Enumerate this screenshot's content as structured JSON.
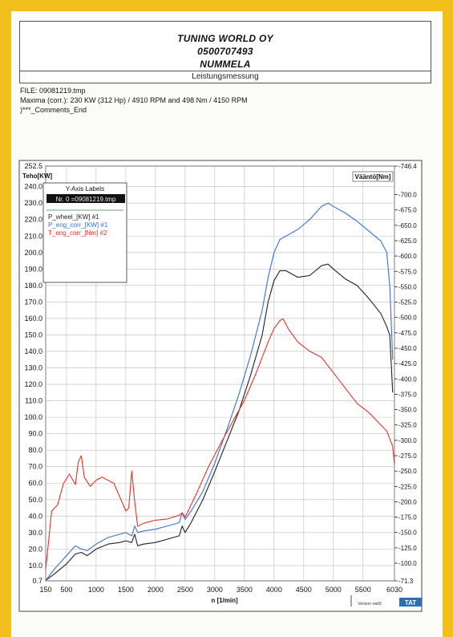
{
  "header": {
    "company": "TUNING WORLD OY",
    "phone": "0500707493",
    "city": "NUMMELA",
    "subtitle": "Leistungsmessung"
  },
  "info": {
    "file": "FILE: 09081219.tmp",
    "maxima": "Maxima (corr.):  230 KW (312 Hp) /  4910 RPM   and   498 Nm /  4150 RPM",
    "comments": ")***_Comments_End"
  },
  "legend": {
    "title": "Y-Axis Labels",
    "file_entry": "Nr. 0 =09081219.tmp",
    "entries": [
      "P_wheel_[KW] #1",
      "P_eng_corr_[KW] #1",
      "T_eng_corr_[Nm] #2"
    ]
  },
  "footer": {
    "version": "Version sw06",
    "brand": "TAT"
  },
  "colors": {
    "wheel": "#222222",
    "engine_power": "#3a6fd0",
    "torque": "#e0352b"
  },
  "chart_data": {
    "type": "line",
    "xlabel": "n  [1/min]",
    "ylabel_left": "Teho[KW]",
    "ylabel_right": "Vääntö[Nm]",
    "xlim": [
      150,
      6030
    ],
    "ylim_left": [
      0.7,
      252.5
    ],
    "ylim_right": [
      71.3,
      746.4
    ],
    "x_ticks": [
      "150",
      "500",
      "1000",
      "1500",
      "2000",
      "2500",
      "3000",
      "3500",
      "4000",
      "4500",
      "5000",
      "5500",
      "6030"
    ],
    "y_ticks_left": [
      "0.7",
      "10.0",
      "20.0",
      "30.0",
      "40.0",
      "50.0",
      "60.0",
      "70.0",
      "80.0",
      "90.0",
      "100.0",
      "110.0",
      "120.0",
      "130.0",
      "140.0",
      "150.0",
      "160.0",
      "170.0",
      "180.0",
      "190.0",
      "200.0",
      "210.0",
      "220.0",
      "230.0",
      "240.0",
      "252.5"
    ],
    "y_ticks_right": [
      "71.3",
      "100.0",
      "125.0",
      "150.0",
      "175.0",
      "200.0",
      "225.0",
      "250.0",
      "275.0",
      "300.0",
      "325.0",
      "350.0",
      "375.0",
      "400.0",
      "425.0",
      "450.0",
      "475.0",
      "500.0",
      "525.0",
      "550.0",
      "575.0",
      "600.0",
      "625.0",
      "650.0",
      "675.0",
      "700.0",
      "746.4"
    ],
    "series": [
      {
        "name": "P_wheel_[KW] #1",
        "axis": "left",
        "x": [
          150,
          300,
          500,
          650,
          750,
          850,
          1000,
          1200,
          1400,
          1500,
          1600,
          1650,
          1700,
          1800,
          2000,
          2200,
          2300,
          2400,
          2450,
          2500,
          2600,
          2800,
          3000,
          3200,
          3400,
          3600,
          3800,
          3900,
          4000,
          4100,
          4200,
          4400,
          4600,
          4800,
          4910,
          5000,
          5200,
          5400,
          5600,
          5800,
          5900,
          5950,
          6000
        ],
        "y": [
          1,
          5,
          11,
          17,
          18,
          16,
          20,
          23,
          24,
          25,
          24,
          29,
          22,
          23,
          24,
          26,
          27,
          28,
          34,
          30,
          36,
          50,
          67,
          85,
          103,
          125,
          150,
          170,
          183,
          189,
          189,
          185,
          186,
          192,
          193,
          190,
          184,
          180,
          172,
          163,
          155,
          150,
          115
        ]
      },
      {
        "name": "P_eng_corr_[KW] #1",
        "axis": "left",
        "x": [
          150,
          300,
          500,
          650,
          750,
          850,
          1000,
          1200,
          1400,
          1500,
          1600,
          1650,
          1700,
          1800,
          2000,
          2200,
          2300,
          2400,
          2450,
          2500,
          2600,
          2800,
          3000,
          3200,
          3400,
          3600,
          3800,
          3900,
          4000,
          4100,
          4200,
          4400,
          4600,
          4800,
          4910,
          5000,
          5200,
          5400,
          5600,
          5800,
          5900,
          5950,
          6000
        ],
        "y": [
          1,
          8,
          16,
          22,
          20,
          19,
          23,
          27,
          29,
          30,
          28,
          34,
          30,
          31,
          32,
          34,
          35,
          36,
          42,
          38,
          43,
          55,
          72,
          92,
          113,
          137,
          165,
          185,
          200,
          208,
          210,
          214,
          220,
          228,
          230,
          228,
          224,
          219,
          213,
          207,
          200,
          180,
          135
        ]
      },
      {
        "name": "T_eng_corr_[Nm] #2",
        "axis": "right",
        "x": [
          150,
          250,
          350,
          450,
          550,
          650,
          700,
          750,
          800,
          900,
          1000,
          1100,
          1300,
          1500,
          1550,
          1600,
          1650,
          1700,
          1800,
          2000,
          2200,
          2400,
          2450,
          2500,
          2700,
          2900,
          3100,
          3300,
          3500,
          3700,
          3900,
          4000,
          4100,
          4150,
          4250,
          4400,
          4600,
          4800,
          5000,
          5200,
          5400,
          5600,
          5800,
          5900,
          6000,
          6030
        ],
        "y": [
          90,
          185,
          195,
          230,
          245,
          228,
          265,
          275,
          240,
          225,
          235,
          240,
          230,
          185,
          190,
          250,
          200,
          160,
          165,
          170,
          172,
          178,
          182,
          175,
          215,
          258,
          295,
          330,
          365,
          410,
          460,
          482,
          495,
          498,
          480,
          460,
          445,
          435,
          410,
          385,
          360,
          345,
          325,
          315,
          290,
          260
        ]
      }
    ],
    "grid": true,
    "legend_position": "top-left"
  }
}
